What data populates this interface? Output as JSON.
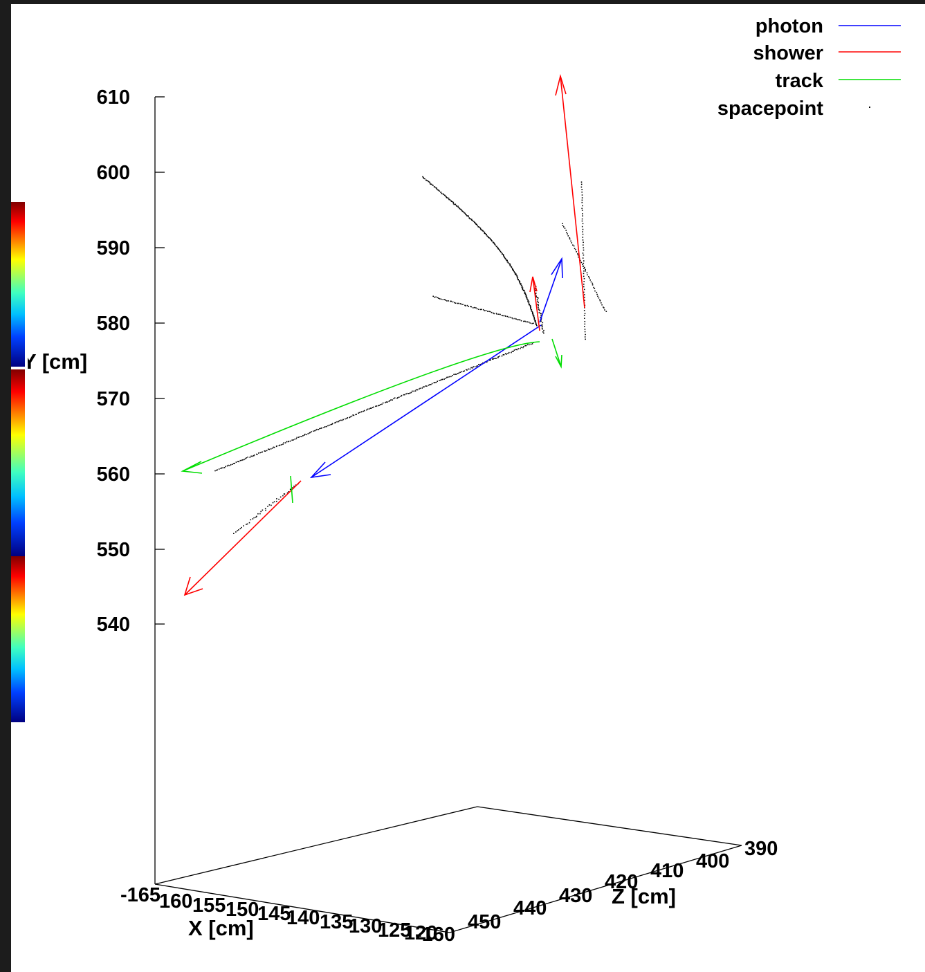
{
  "chart_data": {
    "type": "scatter",
    "projection": "3d",
    "axes": {
      "x": {
        "label": "X [cm]",
        "ticks": [
          "-165",
          "160",
          "155",
          "150",
          "145",
          "140",
          "135",
          "130",
          "125",
          "120",
          "-160"
        ]
      },
      "y": {
        "label": "Y [cm]",
        "ticks": [
          "610",
          "600",
          "590",
          "580",
          "570",
          "560",
          "550",
          "540"
        ]
      },
      "z": {
        "label": "Z [cm]",
        "ticks": [
          "450",
          "440",
          "430",
          "420",
          "410",
          "400",
          "390"
        ]
      }
    },
    "legend": {
      "placement": "top-right",
      "entries": [
        {
          "name": "photon",
          "color": "#0000ff",
          "style": "line"
        },
        {
          "name": "shower",
          "color": "#ff0000",
          "style": "line"
        },
        {
          "name": "track",
          "color": "#00dd00",
          "style": "line"
        },
        {
          "name": "spacepoint",
          "color": "#000000",
          "style": "dot"
        }
      ]
    },
    "series": [
      {
        "name": "photon",
        "color": "#0000ff"
      },
      {
        "name": "shower",
        "color": "#ff0000"
      },
      {
        "name": "track",
        "color": "#00dd00"
      },
      {
        "name": "spacepoint",
        "color": "#000000"
      }
    ],
    "colorbar": {
      "segments": 3,
      "colormap": "jet"
    }
  }
}
